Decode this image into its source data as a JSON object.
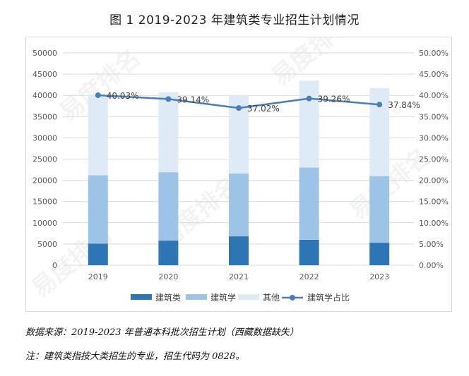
{
  "title": "图 1  2019-2023 年建筑类专业招生计划情况",
  "notes": [
    "数据来源：2019-2023 年普通本科批次招生计划（西藏数据缺失）",
    "注：建筑类指按大类招生的专业，招生代码为 0828。"
  ],
  "watermark": "易度排名",
  "colors": {
    "建筑类": "#2e75b6",
    "建筑学": "#9dc3e6",
    "其他": "#deebf7",
    "line": "#4a7ebb",
    "grid": "#d9d9d9"
  },
  "chart_data": {
    "type": "bar",
    "stacked": true,
    "categories": [
      "2019",
      "2020",
      "2021",
      "2022",
      "2023"
    ],
    "series": [
      {
        "name": "建筑类",
        "values": [
          5100,
          5800,
          6800,
          6000,
          5300
        ]
      },
      {
        "name": "建筑学",
        "values": [
          16100,
          16100,
          14800,
          17000,
          15700
        ]
      },
      {
        "name": "其他",
        "values": [
          18900,
          18800,
          18400,
          20500,
          20700
        ]
      }
    ],
    "line_series": {
      "name": "建筑学占比",
      "values": [
        40.03,
        39.14,
        37.02,
        39.26,
        37.84
      ],
      "labels": [
        "40.03%",
        "39.14%",
        "37.02%",
        "39.26%",
        "37.84%"
      ]
    },
    "y_left": {
      "min": 0,
      "max": 50000,
      "ticks": [
        "0",
        "5000",
        "10000",
        "15000",
        "20000",
        "25000",
        "30000",
        "35000",
        "40000",
        "45000",
        "50000"
      ]
    },
    "y_right": {
      "min": 0,
      "max": 50,
      "ticks": [
        "0.00%",
        "5.00%",
        "10.00%",
        "15.00%",
        "20.00%",
        "25.00%",
        "30.00%",
        "35.00%",
        "40.00%",
        "45.00%",
        "50.00%"
      ]
    },
    "grid": true,
    "legend": {
      "position": "bottom",
      "items": [
        "建筑类",
        "建筑学",
        "其他",
        "建筑学占比"
      ]
    }
  }
}
